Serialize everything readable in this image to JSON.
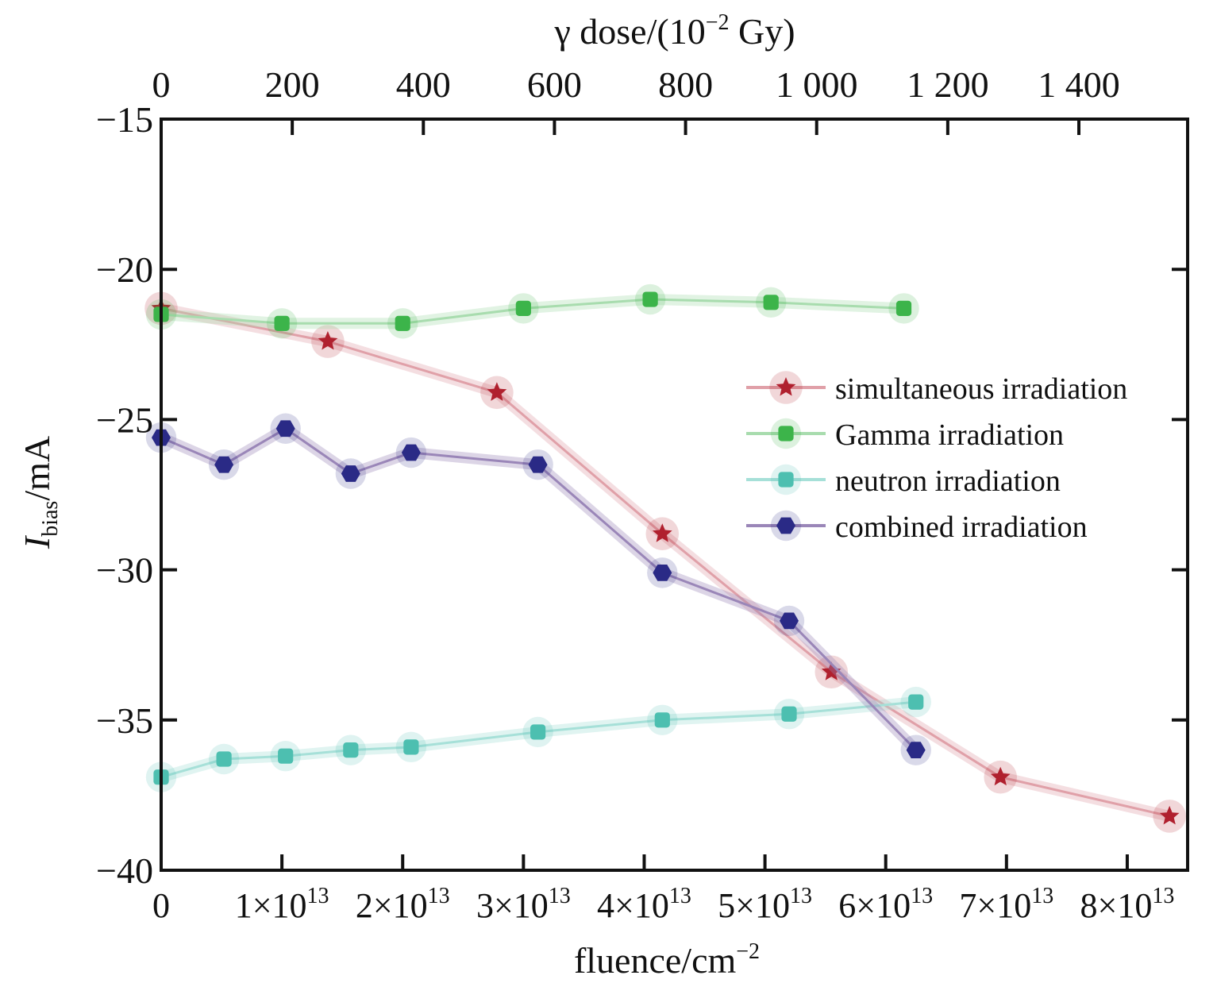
{
  "chart_data": {
    "type": "line",
    "top_axis": {
      "label": "γ dose/(10",
      "label_sup": "−2",
      "label_end": " Gy)",
      "ticks": [
        {
          "value": 0,
          "label": "0"
        },
        {
          "value": 200,
          "label": "200"
        },
        {
          "value": 400,
          "label": "400"
        },
        {
          "value": 600,
          "label": "600"
        },
        {
          "value": 800,
          "label": "800"
        },
        {
          "value": 1000,
          "label": "1 000"
        },
        {
          "value": 1200,
          "label": "1 200"
        },
        {
          "value": 1400,
          "label": "1 400"
        }
      ]
    },
    "x_axis": {
      "label": "fluence/cm",
      "label_sup": "−2",
      "xlim": [
        0,
        85000000000000.0
      ],
      "ticks": [
        {
          "value": 0,
          "label": "0"
        },
        {
          "value": 10000000000000.0,
          "label": "1×10",
          "sup": "13"
        },
        {
          "value": 20000000000000.0,
          "label": "2×10",
          "sup": "13"
        },
        {
          "value": 30000000000000.0,
          "label": "3×10",
          "sup": "13"
        },
        {
          "value": 40000000000000.0,
          "label": "4×10",
          "sup": "13"
        },
        {
          "value": 50000000000000.0,
          "label": "5×10",
          "sup": "13"
        },
        {
          "value": 60000000000000.0,
          "label": "6×10",
          "sup": "13"
        },
        {
          "value": 70000000000000.0,
          "label": "7×10",
          "sup": "13"
        },
        {
          "value": 80000000000000.0,
          "label": "8×10",
          "sup": "13"
        }
      ]
    },
    "y_axis": {
      "label_main": "I",
      "label_sub": "bias",
      "label_unit": "/mA",
      "ylim": [
        -40,
        -15
      ],
      "ticks": [
        {
          "value": -15,
          "label": "−15"
        },
        {
          "value": -20,
          "label": "−20"
        },
        {
          "value": -25,
          "label": "−25"
        },
        {
          "value": -30,
          "label": "−30"
        },
        {
          "value": -35,
          "label": "−35"
        },
        {
          "value": -40,
          "label": "−40"
        }
      ]
    },
    "legend_position": "right-middle",
    "series": [
      {
        "name": "simultaneous irradiation",
        "marker": "star",
        "color": "#b0202e",
        "line_color": "#e0a0a8",
        "points": [
          {
            "x": 0,
            "y": -21.3
          },
          {
            "x": 13800000000000.0,
            "y": -22.4
          },
          {
            "x": 27800000000000.0,
            "y": -24.1
          },
          {
            "x": 41500000000000.0,
            "y": -28.8
          },
          {
            "x": 55500000000000.0,
            "y": -33.4
          },
          {
            "x": 69500000000000.0,
            "y": -36.9
          },
          {
            "x": 83500000000000.0,
            "y": -38.2
          }
        ]
      },
      {
        "name": "Gamma irradiation",
        "marker": "square",
        "color": "#3cb44a",
        "line_color": "#a8dcae",
        "points": [
          {
            "x": 0,
            "y": -21.5
          },
          {
            "x": 10000000000000.0,
            "y": -21.8
          },
          {
            "x": 20000000000000.0,
            "y": -21.8
          },
          {
            "x": 30000000000000.0,
            "y": -21.3
          },
          {
            "x": 40500000000000.0,
            "y": -21.0
          },
          {
            "x": 50500000000000.0,
            "y": -21.1
          },
          {
            "x": 61500000000000.0,
            "y": -21.3
          }
        ]
      },
      {
        "name": "neutron irradiation",
        "marker": "square",
        "color": "#4dbfb0",
        "line_color": "#a6e0d8",
        "points": [
          {
            "x": 0,
            "y": -36.9
          },
          {
            "x": 5200000000000.0,
            "y": -36.3
          },
          {
            "x": 10300000000000.0,
            "y": -36.2
          },
          {
            "x": 15700000000000.0,
            "y": -36.0
          },
          {
            "x": 20700000000000.0,
            "y": -35.9
          },
          {
            "x": 31200000000000.0,
            "y": -35.4
          },
          {
            "x": 41500000000000.0,
            "y": -35.0
          },
          {
            "x": 52000000000000.0,
            "y": -34.8
          },
          {
            "x": 62500000000000.0,
            "y": -34.4
          }
        ]
      },
      {
        "name": "combined irradiation",
        "marker": "hexagon",
        "color": "#2a2a86",
        "line_color": "#9a86b8",
        "points": [
          {
            "x": 0,
            "y": -25.6
          },
          {
            "x": 5200000000000.0,
            "y": -26.5
          },
          {
            "x": 10300000000000.0,
            "y": -25.3
          },
          {
            "x": 15700000000000.0,
            "y": -26.8
          },
          {
            "x": 20700000000000.0,
            "y": -26.1
          },
          {
            "x": 31200000000000.0,
            "y": -26.5
          },
          {
            "x": 41500000000000.0,
            "y": -30.1
          },
          {
            "x": 52000000000000.0,
            "y": -31.7
          },
          {
            "x": 62500000000000.0,
            "y": -36.0
          }
        ]
      }
    ]
  }
}
